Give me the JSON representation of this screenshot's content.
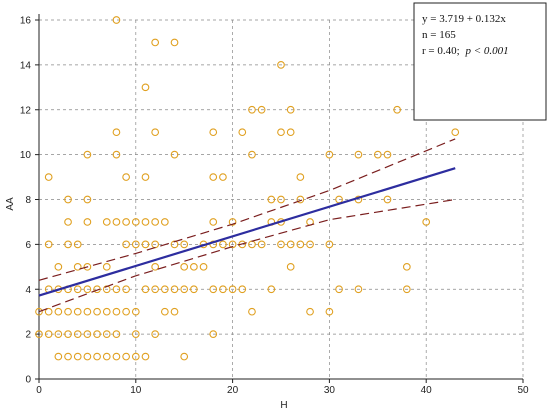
{
  "chart_data": {
    "type": "scatter",
    "title": "",
    "xlabel": "H",
    "ylabel": "AA",
    "xlim": [
      0,
      50
    ],
    "ylim": [
      0,
      16
    ],
    "x_ticks": [
      0,
      10,
      20,
      30,
      40,
      50
    ],
    "y_ticks": [
      0,
      2,
      4,
      6,
      8,
      10,
      12,
      14,
      16
    ],
    "grid": true,
    "colors": {
      "points": "#e0a020",
      "regression": "#2d2d9f",
      "confidence": "#7a1e1e",
      "grid": "#888888"
    },
    "stats_box": {
      "equation": "y = 3.719 + 0.132x",
      "n": "n = 165",
      "r_label": "r = 0.40;",
      "p_label": "p < 0.001"
    },
    "regression": {
      "intercept": 3.719,
      "slope": 0.132,
      "x_range": [
        0,
        43
      ]
    },
    "confidence_band": {
      "upper": [
        [
          0,
          4.4
        ],
        [
          10,
          5.6
        ],
        [
          20,
          6.9
        ],
        [
          30,
          8.4
        ],
        [
          43,
          10.7
        ]
      ],
      "lower": [
        [
          0,
          3.0
        ],
        [
          10,
          4.6
        ],
        [
          20,
          5.9
        ],
        [
          30,
          7.1
        ],
        [
          43,
          8.0
        ]
      ]
    },
    "points": [
      [
        0,
        3
      ],
      [
        0,
        2
      ],
      [
        1,
        9
      ],
      [
        1,
        6
      ],
      [
        1,
        4
      ],
      [
        1,
        3
      ],
      [
        1,
        2
      ],
      [
        2,
        5
      ],
      [
        2,
        4
      ],
      [
        2,
        3
      ],
      [
        2,
        2
      ],
      [
        2,
        1
      ],
      [
        3,
        8
      ],
      [
        3,
        7
      ],
      [
        3,
        6
      ],
      [
        3,
        4
      ],
      [
        3,
        3
      ],
      [
        3,
        2
      ],
      [
        3,
        1
      ],
      [
        4,
        6
      ],
      [
        4,
        5
      ],
      [
        4,
        4
      ],
      [
        4,
        3
      ],
      [
        4,
        2
      ],
      [
        4,
        1
      ],
      [
        5,
        10
      ],
      [
        5,
        8
      ],
      [
        5,
        7
      ],
      [
        5,
        5
      ],
      [
        5,
        4
      ],
      [
        5,
        3
      ],
      [
        5,
        2
      ],
      [
        5,
        1
      ],
      [
        6,
        4
      ],
      [
        6,
        3
      ],
      [
        6,
        2
      ],
      [
        6,
        1
      ],
      [
        7,
        7
      ],
      [
        7,
        5
      ],
      [
        7,
        4
      ],
      [
        7,
        3
      ],
      [
        7,
        2
      ],
      [
        7,
        1
      ],
      [
        8,
        16
      ],
      [
        8,
        11
      ],
      [
        8,
        10
      ],
      [
        8,
        7
      ],
      [
        8,
        4
      ],
      [
        8,
        3
      ],
      [
        8,
        2
      ],
      [
        8,
        1
      ],
      [
        9,
        9
      ],
      [
        9,
        7
      ],
      [
        9,
        6
      ],
      [
        9,
        4
      ],
      [
        9,
        3
      ],
      [
        9,
        1
      ],
      [
        10,
        7
      ],
      [
        10,
        6
      ],
      [
        10,
        3
      ],
      [
        10,
        2
      ],
      [
        10,
        1
      ],
      [
        11,
        13
      ],
      [
        11,
        9
      ],
      [
        11,
        7
      ],
      [
        11,
        6
      ],
      [
        11,
        4
      ],
      [
        11,
        1
      ],
      [
        12,
        15
      ],
      [
        12,
        11
      ],
      [
        12,
        7
      ],
      [
        12,
        6
      ],
      [
        12,
        5
      ],
      [
        12,
        4
      ],
      [
        12,
        2
      ],
      [
        13,
        7
      ],
      [
        13,
        4
      ],
      [
        13,
        3
      ],
      [
        14,
        15
      ],
      [
        14,
        10
      ],
      [
        14,
        6
      ],
      [
        14,
        4
      ],
      [
        14,
        3
      ],
      [
        15,
        6
      ],
      [
        15,
        5
      ],
      [
        15,
        4
      ],
      [
        15,
        1
      ],
      [
        16,
        5
      ],
      [
        16,
        4
      ],
      [
        17,
        6
      ],
      [
        17,
        5
      ],
      [
        18,
        11
      ],
      [
        18,
        9
      ],
      [
        18,
        7
      ],
      [
        18,
        6
      ],
      [
        18,
        4
      ],
      [
        18,
        2
      ],
      [
        19,
        9
      ],
      [
        19,
        6
      ],
      [
        19,
        4
      ],
      [
        20,
        7
      ],
      [
        20,
        6
      ],
      [
        20,
        4
      ],
      [
        21,
        11
      ],
      [
        21,
        6
      ],
      [
        21,
        4
      ],
      [
        22,
        12
      ],
      [
        22,
        10
      ],
      [
        22,
        6
      ],
      [
        22,
        3
      ],
      [
        23,
        12
      ],
      [
        23,
        6
      ],
      [
        24,
        8
      ],
      [
        24,
        7
      ],
      [
        24,
        4
      ],
      [
        25,
        14
      ],
      [
        25,
        11
      ],
      [
        25,
        8
      ],
      [
        25,
        7
      ],
      [
        25,
        6
      ],
      [
        26,
        12
      ],
      [
        26,
        11
      ],
      [
        26,
        6
      ],
      [
        26,
        5
      ],
      [
        27,
        9
      ],
      [
        27,
        8
      ],
      [
        27,
        6
      ],
      [
        28,
        7
      ],
      [
        28,
        6
      ],
      [
        28,
        3
      ],
      [
        30,
        10
      ],
      [
        30,
        6
      ],
      [
        30,
        3
      ],
      [
        31,
        8
      ],
      [
        31,
        4
      ],
      [
        33,
        10
      ],
      [
        33,
        8
      ],
      [
        33,
        4
      ],
      [
        35,
        10
      ],
      [
        36,
        10
      ],
      [
        36,
        8
      ],
      [
        37,
        12
      ],
      [
        38,
        5
      ],
      [
        38,
        4
      ],
      [
        40,
        7
      ],
      [
        43,
        11
      ]
    ]
  }
}
